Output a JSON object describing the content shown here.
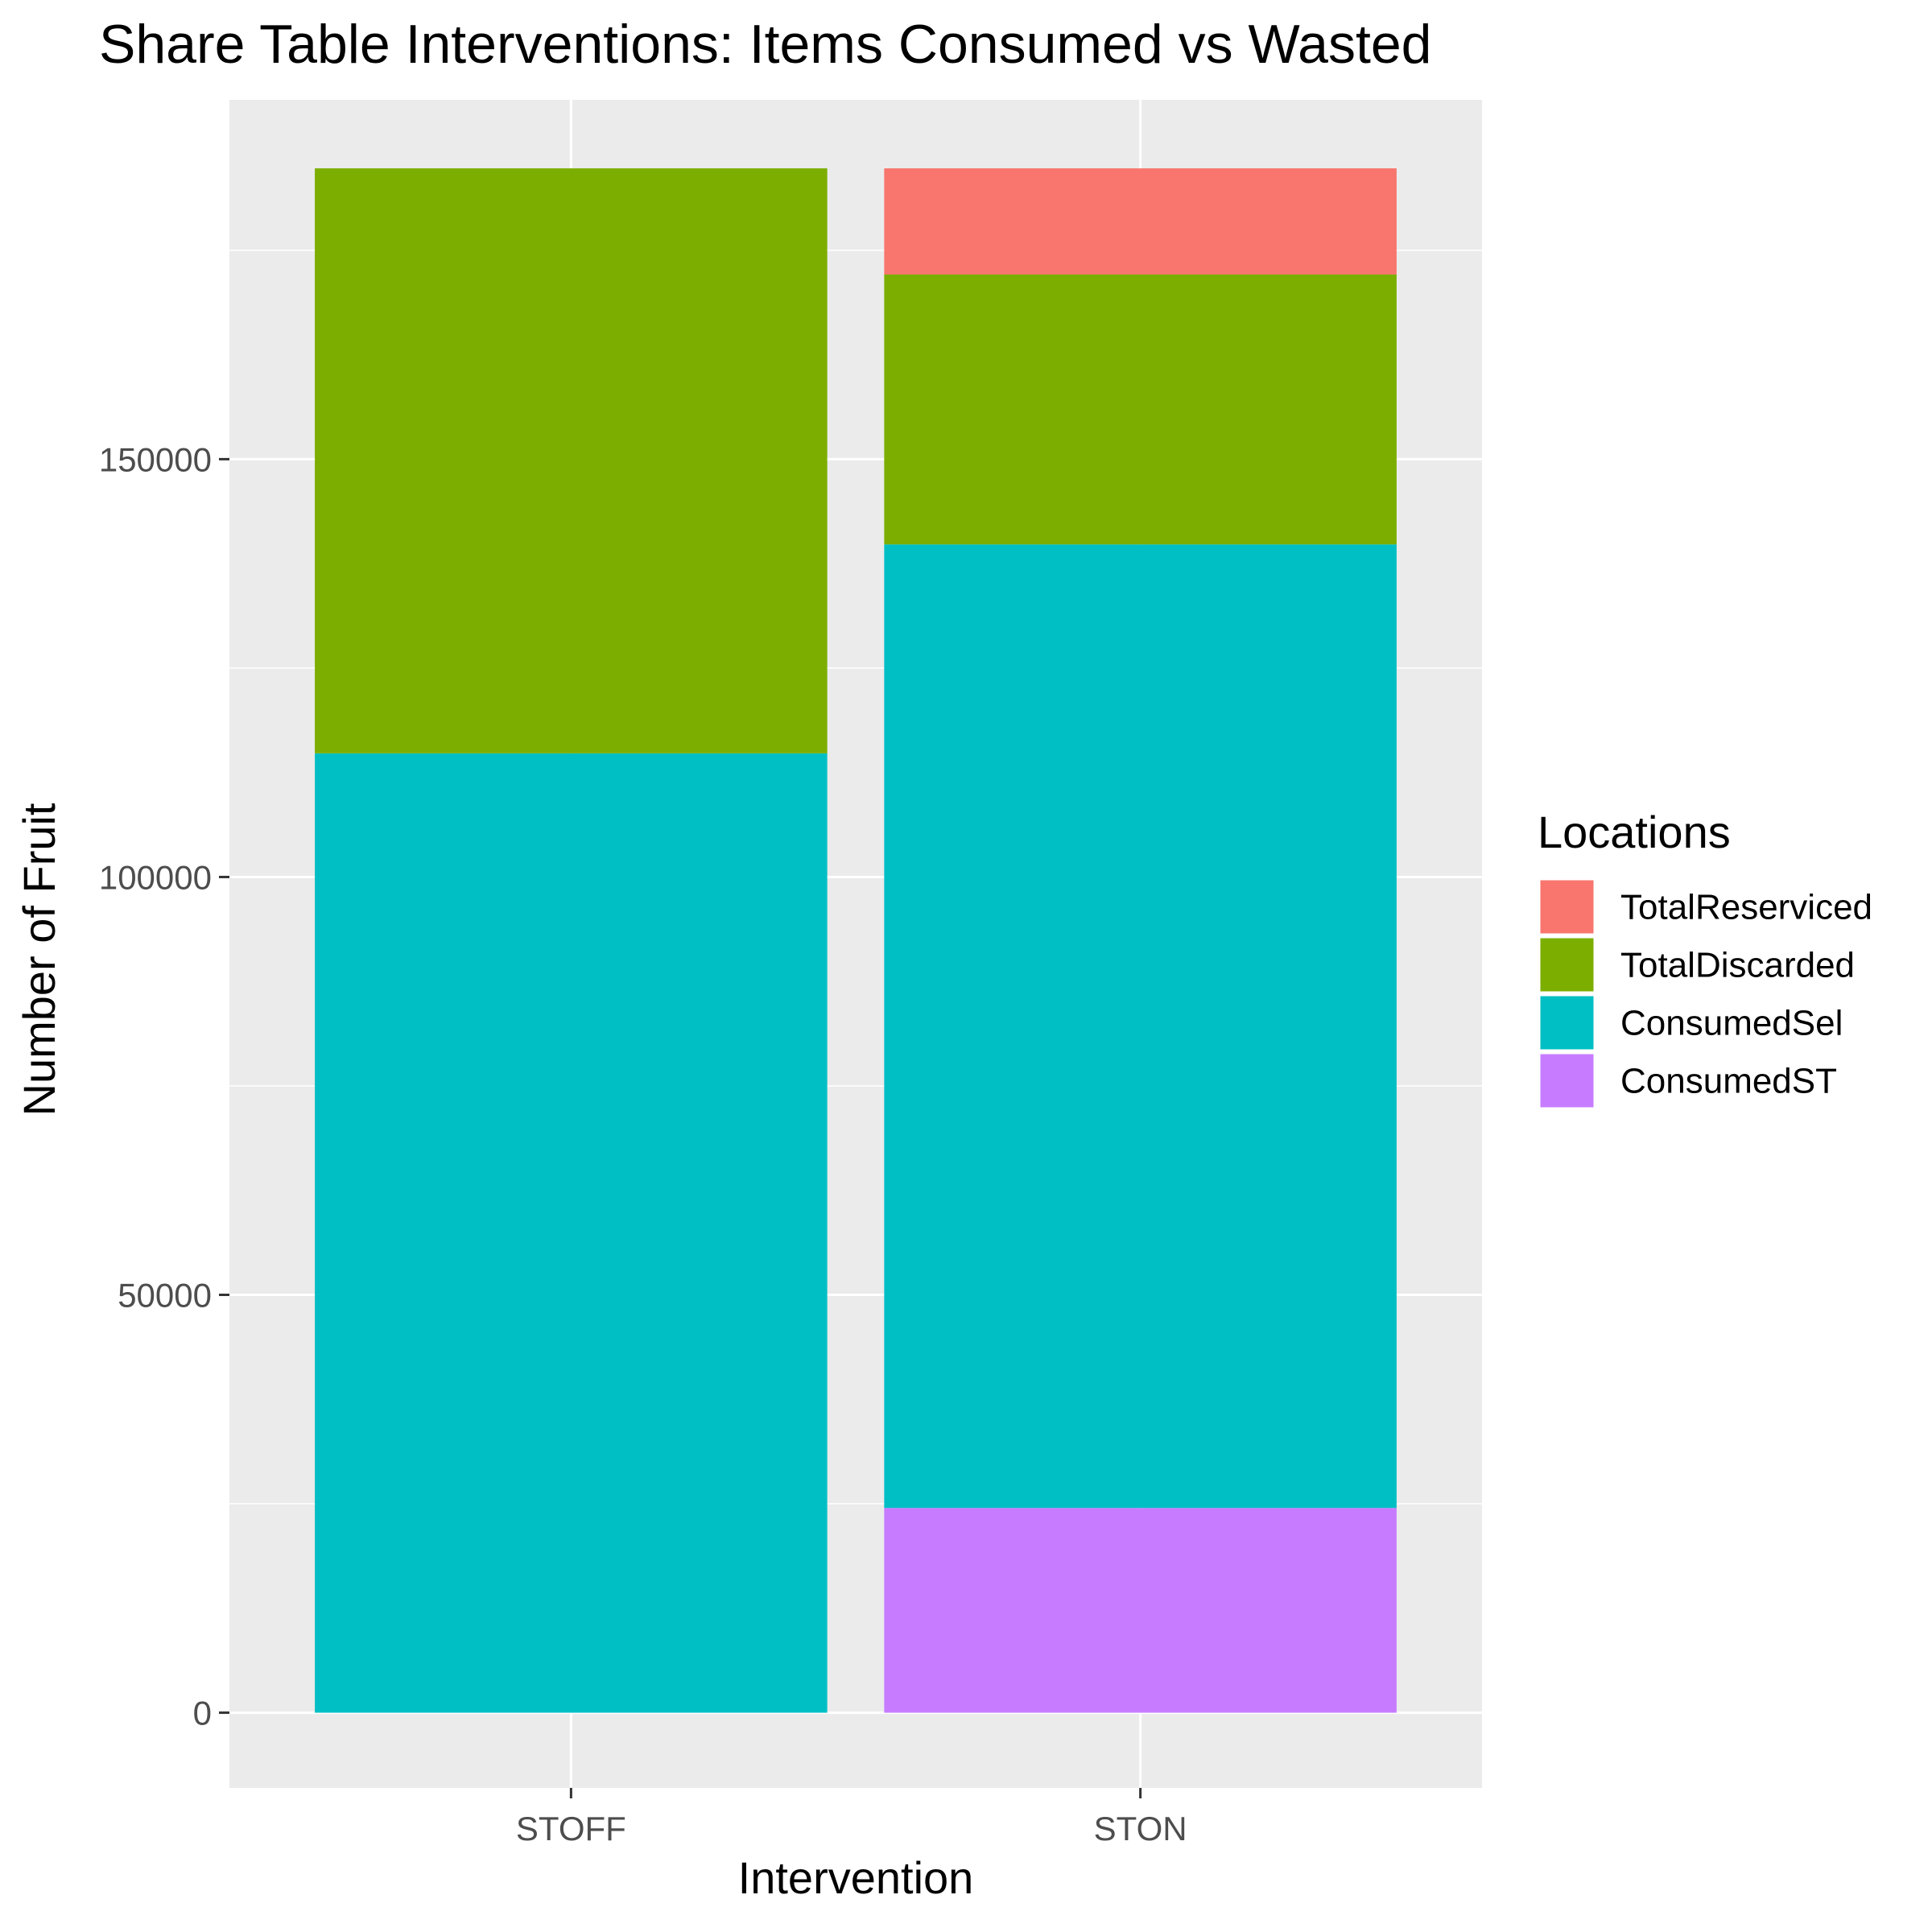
{
  "chart_data": {
    "type": "bar",
    "stacked": true,
    "title": "Share Table Interventions: Items Consumed vs Wasted",
    "xlabel": "Intervention",
    "ylabel": "Number of Fruit",
    "categories": [
      "STOFF",
      "STON"
    ],
    "ylim": [
      -9000,
      193000
    ],
    "yticks": [
      0,
      50000,
      100000,
      150000
    ],
    "grid": true,
    "legend": {
      "title": "Locations",
      "position": "right"
    },
    "series": [
      {
        "name": "TotalReserviced",
        "color": "#F8766D",
        "values": [
          0,
          12700
        ]
      },
      {
        "name": "TotalDiscarded",
        "color": "#7CAE00",
        "values": [
          70000,
          32300
        ]
      },
      {
        "name": "ConsumedSel",
        "color": "#00BFC4",
        "values": [
          114800,
          115300
        ]
      },
      {
        "name": "ConsumedST",
        "color": "#C77CFF",
        "values": [
          0,
          24500
        ]
      }
    ]
  }
}
